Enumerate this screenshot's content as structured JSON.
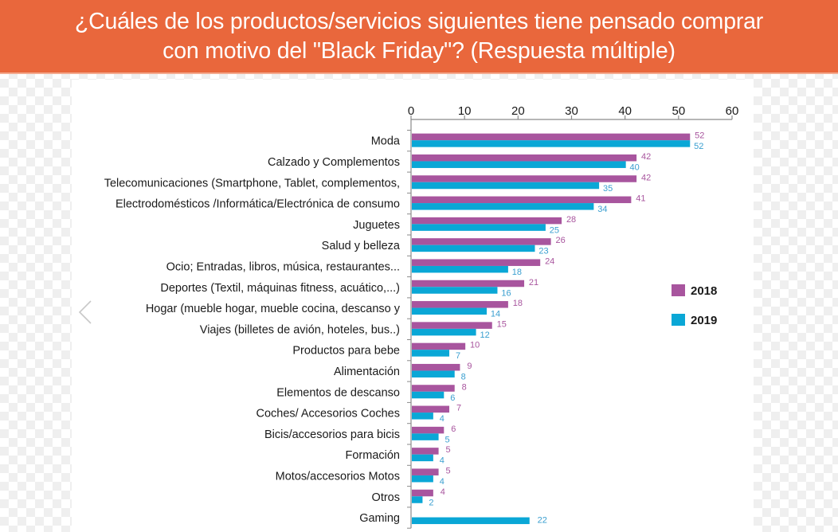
{
  "header": {
    "title_line1": "¿Cuáles de los productos/servicios siguientes tiene pensado comprar",
    "title_line2": "con motivo del \"Black Friday\"? (Respuesta múltiple)"
  },
  "navigation": {
    "prev_icon": "chevron-left-icon"
  },
  "colors": {
    "series_2018": "#a8559e",
    "series_2019": "#0aa7d6",
    "header_bg": "#e9673c",
    "label_2018": "#a8559e",
    "label_2019": "#3a9fd0"
  },
  "chart_data": {
    "type": "bar",
    "orientation": "horizontal",
    "title": "¿Cuáles de los productos/servicios siguientes tiene pensado comprar con motivo del \"Black Friday\"? (Respuesta múltiple)",
    "xlabel": "",
    "ylabel": "",
    "xlim": [
      0,
      60
    ],
    "xticks": [
      0,
      10,
      20,
      30,
      40,
      50,
      60
    ],
    "grid": false,
    "legend_position": "right",
    "categories": [
      "Moda",
      "Calzado y Complementos",
      "Telecomunicaciones (Smartphone, Tablet, complementos,",
      "Electrodomésticos /Informática/Electrónica de consumo",
      "Juguetes",
      "Salud y belleza",
      "Ocio; Entradas, libros, música, restaurantes...",
      "Deportes (Textil, máquinas fitness, acuático,...)",
      "Hogar (mueble hogar, mueble cocina, descanso y",
      "Viajes (billetes de avión, hoteles, bus..)",
      "Productos para bebe",
      "Alimentación",
      "Elementos de descanso",
      "Coches/ Accesorios Coches",
      "Bicis/accesorios para bicis",
      "Formación",
      "Motos/accesorios Motos",
      "Otros",
      "Gaming"
    ],
    "series": [
      {
        "name": "2018",
        "values": [
          52,
          42,
          42,
          41,
          28,
          26,
          24,
          21,
          18,
          15,
          10,
          9,
          8,
          7,
          6,
          5,
          5,
          4,
          null
        ]
      },
      {
        "name": "2019",
        "values": [
          52,
          40,
          35,
          34,
          25,
          23,
          18,
          16,
          14,
          12,
          7,
          8,
          6,
          4,
          5,
          4,
          4,
          2,
          22
        ]
      }
    ]
  }
}
